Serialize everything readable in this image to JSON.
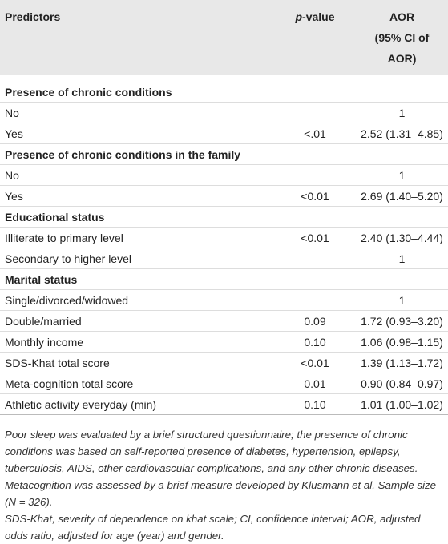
{
  "table": {
    "header": {
      "predictors": "Predictors",
      "pvalue": "p-value",
      "aor": "AOR",
      "aor_ci": "(95% CI of AOR)"
    },
    "rows": [
      {
        "heading": "Presence of chronic conditions"
      },
      {
        "label": "No",
        "aor": "1"
      },
      {
        "label": "Yes",
        "p": "<.01",
        "aor": "2.52 (1.31–4.85)"
      },
      {
        "heading": "Presence of chronic conditions in the family"
      },
      {
        "label": "No",
        "aor": "1"
      },
      {
        "label": "Yes",
        "p": "<0.01",
        "aor": "2.69 (1.40–5.20)"
      },
      {
        "heading": "Educational status"
      },
      {
        "label": "Illiterate to primary level",
        "p": "<0.01",
        "aor": "2.40 (1.30–4.44)"
      },
      {
        "label": "Secondary to higher level",
        "aor": "1"
      },
      {
        "heading": "Marital status"
      },
      {
        "label": "Single/divorced/widowed",
        "aor": "1"
      },
      {
        "label": "Double/married",
        "p": "0.09",
        "aor": "1.72 (0.93–3.20)"
      },
      {
        "label": "Monthly income",
        "p": "0.10",
        "aor": "1.06 (0.98–1.15)"
      },
      {
        "label": "SDS-Khat total score",
        "p": "<0.01",
        "aor": "1.39 (1.13–1.72)"
      },
      {
        "label": "Meta-cognition total score",
        "p": "0.01",
        "aor": "0.90 (0.84–0.97)"
      },
      {
        "label": "Athletic activity everyday (min)",
        "p": "0.10",
        "aor": "1.01 (1.00–1.02)"
      }
    ]
  },
  "notes": [
    "Poor sleep was evaluated by a brief structured questionnaire; the presence of chronic conditions was based on self-reported presence of diabetes, hypertension, epilepsy, tuberculosis, AIDS, other cardiovascular complications, and any other chronic diseases. Metacognition was assessed by a brief measure developed by Klusmann et al. Sample size (N = 326).",
    "SDS-Khat, severity of dependence on khat scale; CI, confidence interval; AOR, adjusted odds ratio, adjusted for age (year) and gender."
  ]
}
